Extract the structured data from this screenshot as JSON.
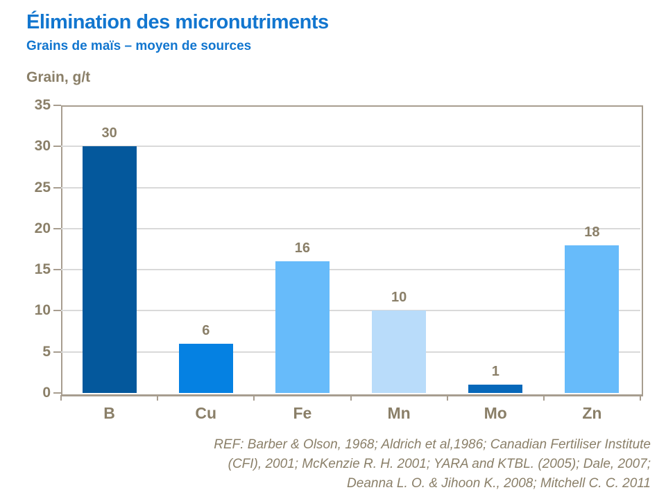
{
  "header": {
    "title": "Élimination des micronutriments",
    "subtitle": "Grains de maïs – moyen de sources"
  },
  "footer": {
    "ref": "REF: Barber & Olson, 1968; Aldrich et al,1986; Canadian Fertiliser Institute\n(CFI),  2001; McKenzie R. H. 2001; YARA and KTBL. (2005); Dale, 2007;\nDeanna L. O. & Jihoon K.,  2008; Mitchell C. C. 2011"
  },
  "colors": {
    "title_blue": "#1276CF",
    "text_taupe": "#8A7F68",
    "axis_taupe": "#A79D8F",
    "gridline_gray": "#D9D9D9"
  },
  "chart_data": {
    "type": "bar",
    "title": "Élimination des micronutriments",
    "subtitle": "Grains de maïs – moyen de sources",
    "ylabel": "Grain, g/t",
    "xlabel": "",
    "categories": [
      "B",
      "Cu",
      "Fe",
      "Mn",
      "Mo",
      "Zn"
    ],
    "values": [
      30,
      6,
      16,
      10,
      1,
      18
    ],
    "bar_colors": [
      "#04589C",
      "#0581E2",
      "#67BBFA",
      "#B9DCFA",
      "#0768BA",
      "#67BBFA"
    ],
    "ylim": [
      0,
      35
    ],
    "ytick_step": 5,
    "grid": true,
    "legend": "none",
    "value_labels": true
  }
}
